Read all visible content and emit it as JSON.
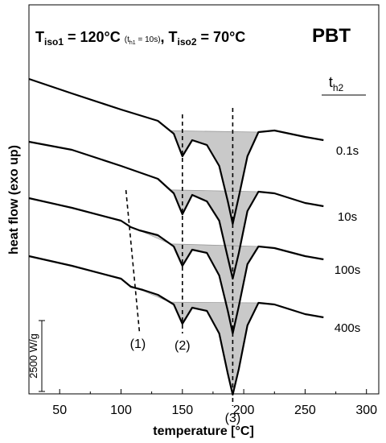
{
  "chart_data": {
    "type": "line",
    "title": {
      "main_t1": "T",
      "main_t1_sub": "iso1",
      "main_t1_rest": " = 120°C ",
      "inner": "(t",
      "inner_sub": "h1",
      "inner_rest": " = 10s)",
      "main_t2_pre": ", T",
      "main_t2_sub": "iso2",
      "main_t2_rest": " = 70°C"
    },
    "material": "PBT",
    "xlabel": "temperature [°C]",
    "ylabel": "heat flow (exo up)",
    "xlim": [
      25,
      310
    ],
    "x_ticks": [
      50,
      100,
      150,
      200,
      250,
      300
    ],
    "scale_bar_label": "2500 W/g",
    "legend_header": {
      "t": "t",
      "sub": "h2"
    },
    "series": [
      {
        "name": "0.1s",
        "x": [
          25,
          60,
          100,
          130,
          143,
          150,
          158,
          170,
          180,
          187,
          191,
          196,
          203,
          212,
          225,
          250,
          265
        ],
        "y": [
          16.8,
          15.9,
          14.9,
          14.2,
          13.4,
          12.0,
          13.0,
          12.7,
          11.4,
          9.2,
          7.8,
          9.5,
          12.0,
          13.5,
          13.6,
          13.2,
          13.0
        ]
      },
      {
        "name": "10s",
        "x": [
          25,
          60,
          100,
          130,
          143,
          150,
          158,
          170,
          180,
          187,
          191,
          196,
          203,
          212,
          225,
          250,
          265
        ],
        "y": [
          12.9,
          12.4,
          11.4,
          10.6,
          9.7,
          8.4,
          9.6,
          9.2,
          8.0,
          5.7,
          4.4,
          6.0,
          8.6,
          9.8,
          9.7,
          9.1,
          8.9
        ]
      },
      {
        "name": "100s",
        "x": [
          25,
          60,
          100,
          108,
          115,
          130,
          143,
          150,
          158,
          170,
          180,
          187,
          191,
          196,
          203,
          212,
          225,
          250,
          265
        ],
        "y": [
          9.4,
          8.8,
          8.0,
          7.6,
          7.4,
          7.1,
          6.4,
          5.2,
          6.2,
          6.0,
          4.6,
          2.4,
          1.0,
          2.7,
          5.3,
          6.4,
          6.3,
          5.8,
          5.6
        ]
      },
      {
        "name": "400s",
        "x": [
          25,
          60,
          100,
          108,
          118,
          130,
          143,
          150,
          158,
          170,
          180,
          187,
          191,
          196,
          203,
          212,
          225,
          250,
          265
        ],
        "y": [
          5.8,
          5.2,
          4.4,
          3.9,
          3.7,
          3.4,
          2.8,
          1.6,
          2.6,
          2.4,
          1.0,
          -1.5,
          -2.8,
          -1.2,
          1.5,
          2.9,
          2.8,
          2.2,
          2.0
        ]
      }
    ],
    "annotations": [
      {
        "label": "(1)",
        "from": [
          104,
          9.9
        ],
        "to": [
          115,
          1.1
        ]
      },
      {
        "label": "(2)",
        "from": [
          150,
          14.6
        ],
        "to": [
          150,
          1.0
        ]
      },
      {
        "label": "(3)",
        "from": [
          191,
          15.0
        ],
        "to": [
          191,
          -3.5
        ]
      }
    ],
    "grid": false
  }
}
